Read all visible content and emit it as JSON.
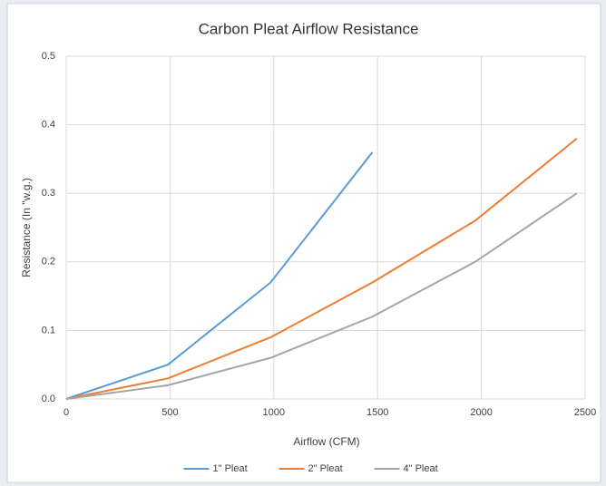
{
  "chart_data": {
    "type": "line",
    "title": "Carbon Pleat Airflow Resistance",
    "x_label": "Airflow (CFM)",
    "y_label": "Resistance (In \"w.g.)",
    "xlim": [
      0,
      2500
    ],
    "xticks": [
      0,
      500,
      1000,
      1500,
      2000,
      2500
    ],
    "ylim": [
      0,
      0.5
    ],
    "yticks": [
      {
        "value": 0,
        "label": "0.0"
      },
      0.1,
      0.2,
      0.3,
      0.4,
      0.5
    ],
    "grid": true,
    "legend": "bottom",
    "series": [
      {
        "name": "1\" Pleat",
        "color": "#5b9bd5",
        "x": [
          0,
          490,
          985,
          1475
        ],
        "values": [
          0,
          0.05,
          0.17,
          0.36
        ]
      },
      {
        "name": "2\" Pleat",
        "color": "#ed7d31",
        "x": [
          0,
          490,
          985,
          1475,
          1970,
          2460
        ],
        "values": [
          0,
          0.03,
          0.09,
          0.17,
          0.26,
          0.38
        ]
      },
      {
        "name": "4\" Pleat",
        "color": "#a5a5a5",
        "x": [
          0,
          490,
          985,
          1475,
          1970,
          2460
        ],
        "values": [
          0,
          0.02,
          0.06,
          0.12,
          0.2,
          0.3
        ]
      }
    ]
  }
}
